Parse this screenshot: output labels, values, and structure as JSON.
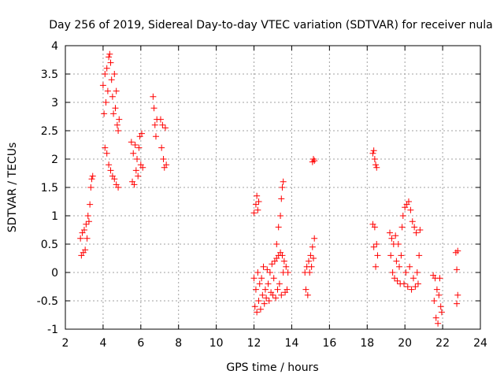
{
  "chart_data": {
    "type": "scatter",
    "title": "Day 256 of 2019, Sidereal Day-to-day VTEC variation (SDTVAR) for receiver nula",
    "xlabel": "GPS time / hours",
    "ylabel": "SDTVAR / TECUs",
    "xlim": [
      2,
      24
    ],
    "ylim": [
      -1,
      4
    ],
    "xticks": [
      "2",
      "4",
      "6",
      "8",
      "10",
      "12",
      "14",
      "16",
      "18",
      "20",
      "22",
      "24"
    ],
    "yticks": [
      "-1",
      "-0.5",
      "0",
      "0.5",
      "1",
      "1.5",
      "2",
      "2.5",
      "3",
      "3.5",
      "4"
    ],
    "grid": true,
    "marker": "+",
    "color": "#ff0000",
    "series": [
      {
        "name": "nula",
        "points": [
          [
            2.8,
            0.6
          ],
          [
            2.85,
            0.3
          ],
          [
            2.9,
            0.7
          ],
          [
            2.95,
            0.35
          ],
          [
            3.0,
            0.75
          ],
          [
            3.05,
            0.4
          ],
          [
            3.1,
            0.85
          ],
          [
            3.15,
            0.6
          ],
          [
            3.2,
            1.0
          ],
          [
            3.25,
            0.9
          ],
          [
            3.3,
            1.2
          ],
          [
            3.35,
            1.5
          ],
          [
            3.4,
            1.65
          ],
          [
            3.45,
            1.7
          ],
          [
            4.0,
            3.3
          ],
          [
            4.05,
            2.8
          ],
          [
            4.1,
            3.5
          ],
          [
            4.15,
            3.0
          ],
          [
            4.2,
            3.6
          ],
          [
            4.25,
            3.2
          ],
          [
            4.3,
            3.8
          ],
          [
            4.35,
            3.85
          ],
          [
            4.4,
            3.7
          ],
          [
            4.45,
            3.4
          ],
          [
            4.5,
            3.1
          ],
          [
            4.55,
            2.8
          ],
          [
            4.6,
            3.5
          ],
          [
            4.65,
            2.9
          ],
          [
            4.7,
            3.2
          ],
          [
            4.75,
            2.6
          ],
          [
            4.8,
            2.5
          ],
          [
            4.85,
            2.7
          ],
          [
            4.1,
            2.2
          ],
          [
            4.2,
            2.1
          ],
          [
            4.3,
            1.9
          ],
          [
            4.4,
            1.8
          ],
          [
            4.5,
            1.7
          ],
          [
            4.6,
            1.65
          ],
          [
            4.7,
            1.55
          ],
          [
            4.8,
            1.5
          ],
          [
            5.5,
            2.3
          ],
          [
            5.55,
            1.6
          ],
          [
            5.6,
            2.1
          ],
          [
            5.65,
            1.55
          ],
          [
            5.7,
            2.25
          ],
          [
            5.75,
            1.8
          ],
          [
            5.8,
            2.0
          ],
          [
            5.85,
            1.7
          ],
          [
            5.9,
            2.2
          ],
          [
            5.95,
            2.4
          ],
          [
            6.0,
            1.9
          ],
          [
            6.05,
            2.45
          ],
          [
            6.1,
            1.85
          ],
          [
            6.65,
            3.1
          ],
          [
            6.7,
            2.9
          ],
          [
            6.75,
            2.6
          ],
          [
            6.8,
            2.4
          ],
          [
            6.85,
            2.7
          ],
          [
            7.05,
            2.7
          ],
          [
            7.1,
            2.2
          ],
          [
            7.15,
            2.6
          ],
          [
            7.2,
            2.0
          ],
          [
            7.25,
            1.85
          ],
          [
            7.3,
            2.55
          ],
          [
            7.35,
            1.9
          ],
          [
            12.0,
            1.05
          ],
          [
            12.1,
            1.2
          ],
          [
            12.15,
            1.35
          ],
          [
            12.2,
            1.1
          ],
          [
            12.25,
            1.25
          ],
          [
            12.0,
            -0.1
          ],
          [
            12.05,
            -0.6
          ],
          [
            12.1,
            -0.3
          ],
          [
            12.15,
            -0.7
          ],
          [
            12.2,
            0.0
          ],
          [
            12.25,
            -0.5
          ],
          [
            12.3,
            -0.2
          ],
          [
            12.35,
            -0.65
          ],
          [
            12.4,
            -0.1
          ],
          [
            12.45,
            -0.4
          ],
          [
            12.5,
            0.1
          ],
          [
            12.55,
            -0.55
          ],
          [
            12.6,
            -0.3
          ],
          [
            12.65,
            -0.45
          ],
          [
            12.7,
            0.05
          ],
          [
            12.75,
            -0.2
          ],
          [
            12.8,
            -0.5
          ],
          [
            12.85,
            0.0
          ],
          [
            12.9,
            -0.35
          ],
          [
            12.95,
            0.15
          ],
          [
            13.0,
            -0.4
          ],
          [
            13.05,
            -0.1
          ],
          [
            13.1,
            0.2
          ],
          [
            13.15,
            -0.45
          ],
          [
            13.2,
            0.25
          ],
          [
            13.25,
            -0.3
          ],
          [
            13.3,
            0.3
          ],
          [
            13.35,
            -0.2
          ],
          [
            13.4,
            0.35
          ],
          [
            13.45,
            -0.4
          ],
          [
            13.5,
            0.3
          ],
          [
            13.55,
            0.0
          ],
          [
            13.6,
            0.2
          ],
          [
            13.65,
            -0.35
          ],
          [
            13.7,
            0.1
          ],
          [
            13.75,
            -0.3
          ],
          [
            13.8,
            0.0
          ],
          [
            13.2,
            0.5
          ],
          [
            13.3,
            0.8
          ],
          [
            13.4,
            1.0
          ],
          [
            13.45,
            1.3
          ],
          [
            13.5,
            1.5
          ],
          [
            13.55,
            1.6
          ],
          [
            14.7,
            0.0
          ],
          [
            14.75,
            -0.3
          ],
          [
            14.8,
            0.1
          ],
          [
            14.85,
            -0.4
          ],
          [
            14.9,
            0.2
          ],
          [
            14.95,
            0.0
          ],
          [
            15.0,
            0.3
          ],
          [
            15.05,
            0.1
          ],
          [
            15.1,
            0.45
          ],
          [
            15.15,
            0.25
          ],
          [
            15.2,
            0.6
          ],
          [
            15.1,
            1.95
          ],
          [
            15.15,
            2.0
          ],
          [
            15.2,
            1.97
          ],
          [
            18.3,
            2.1
          ],
          [
            18.35,
            2.15
          ],
          [
            18.4,
            2.0
          ],
          [
            18.45,
            1.9
          ],
          [
            18.5,
            1.85
          ],
          [
            18.3,
            0.85
          ],
          [
            18.35,
            0.45
          ],
          [
            18.4,
            0.8
          ],
          [
            18.45,
            0.1
          ],
          [
            18.5,
            0.5
          ],
          [
            18.55,
            0.3
          ],
          [
            19.2,
            0.7
          ],
          [
            19.25,
            0.3
          ],
          [
            19.3,
            0.6
          ],
          [
            19.35,
            0.0
          ],
          [
            19.4,
            0.5
          ],
          [
            19.45,
            -0.1
          ],
          [
            19.5,
            0.65
          ],
          [
            19.55,
            0.2
          ],
          [
            19.6,
            -0.15
          ],
          [
            19.65,
            0.5
          ],
          [
            19.7,
            0.1
          ],
          [
            19.75,
            -0.2
          ],
          [
            19.8,
            0.3
          ],
          [
            19.85,
            0.8
          ],
          [
            19.9,
            1.0
          ],
          [
            19.95,
            -0.2
          ],
          [
            20.0,
            1.15
          ],
          [
            20.05,
            0.0
          ],
          [
            20.1,
            1.2
          ],
          [
            20.15,
            -0.25
          ],
          [
            20.2,
            1.25
          ],
          [
            20.25,
            0.1
          ],
          [
            20.3,
            1.1
          ],
          [
            20.35,
            -0.3
          ],
          [
            20.4,
            0.9
          ],
          [
            20.45,
            -0.1
          ],
          [
            20.5,
            0.8
          ],
          [
            20.55,
            -0.25
          ],
          [
            20.6,
            0.7
          ],
          [
            20.65,
            0.0
          ],
          [
            20.7,
            -0.2
          ],
          [
            20.75,
            0.3
          ],
          [
            20.8,
            0.75
          ],
          [
            21.5,
            -0.05
          ],
          [
            21.55,
            -0.5
          ],
          [
            21.6,
            -0.1
          ],
          [
            21.65,
            -0.8
          ],
          [
            21.7,
            -0.3
          ],
          [
            21.75,
            -0.9
          ],
          [
            21.8,
            -0.4
          ],
          [
            21.85,
            -0.1
          ],
          [
            21.9,
            -0.6
          ],
          [
            21.95,
            -0.7
          ],
          [
            22.7,
            0.35
          ],
          [
            22.75,
            0.05
          ],
          [
            22.8,
            -0.4
          ],
          [
            22.75,
            -0.55
          ],
          [
            22.8,
            0.38
          ]
        ]
      }
    ]
  }
}
